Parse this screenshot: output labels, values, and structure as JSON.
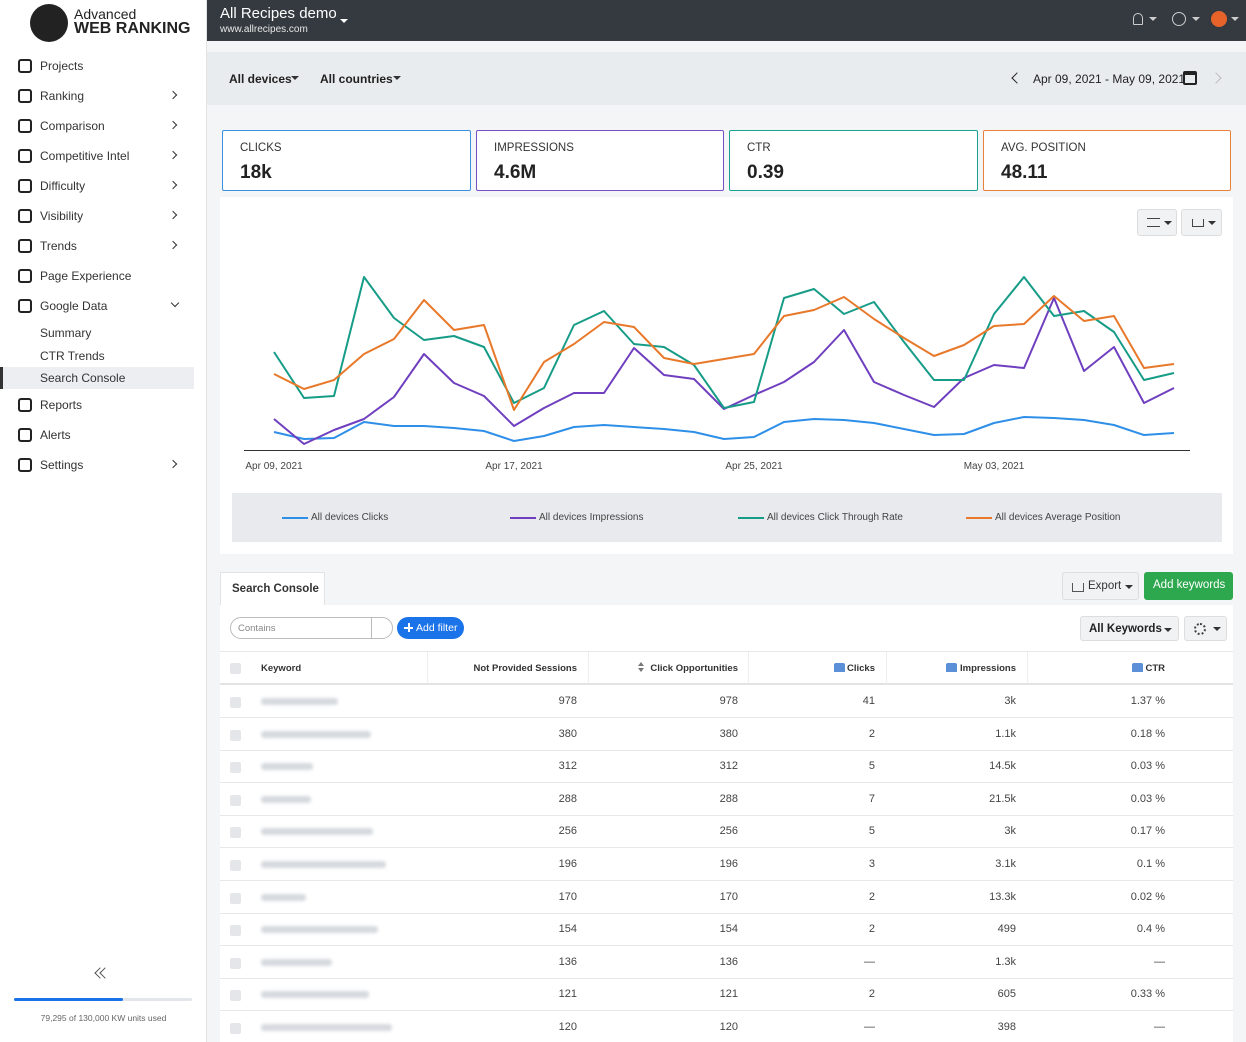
{
  "sidebar": {
    "logo": [
      "Advanced",
      "WEB RANKING"
    ],
    "nav": [
      "Projects",
      "Ranking",
      "Comparison",
      "Competitive Intel",
      "Difficulty",
      "Visibility",
      "Trends",
      "Page Experience",
      "Google Data"
    ],
    "google_data_items": [
      "Summary",
      "CTR Trends",
      "Search Console"
    ],
    "nav_bottom": [
      "Reports",
      "Alerts",
      "Settings"
    ],
    "usage": {
      "label": "79,295 of 130,000 KW units used",
      "used": 79295,
      "total": 130000
    }
  },
  "topbar": {
    "title": "All Recipes demo",
    "subtitle": "www.allrecipes.com"
  },
  "filters": {
    "device": "All devices",
    "country": "All countries",
    "date_range": "Apr 09, 2021 - May 09, 2021"
  },
  "cards": [
    {
      "label": "CLICKS",
      "value": "18k",
      "color": "#3d8fe0"
    },
    {
      "label": "IMPRESSIONS",
      "value": "4.6M",
      "color": "#7a4fc4"
    },
    {
      "label": "CTR",
      "value": "0.39",
      "color": "#1aa392"
    },
    {
      "label": "AVG. POSITION",
      "value": "48.11",
      "color": "#e8823a"
    }
  ],
  "chart_data": {
    "type": "line",
    "categories": [
      "Apr 09, 2021",
      null,
      null,
      null,
      null,
      null,
      null,
      null,
      "Apr 17, 2021",
      null,
      null,
      null,
      null,
      null,
      null,
      null,
      "Apr 25, 2021",
      null,
      null,
      null,
      null,
      null,
      null,
      null,
      "May 03, 2021",
      null,
      null,
      null,
      null,
      null,
      null
    ],
    "ylim": [
      0,
      100
    ],
    "grid": false,
    "legend": "bottom",
    "series": [
      {
        "name": "All devices Clicks",
        "color": "#2e8fe8",
        "values": [
          9,
          5.5,
          6,
          14,
          12,
          12,
          11,
          9.5,
          4.5,
          7,
          11.5,
          12.5,
          11.5,
          10.5,
          9,
          5.5,
          6.5,
          14,
          15.5,
          15,
          13.5,
          10.5,
          7.5,
          8,
          13.5,
          16.5,
          16,
          15,
          12.5,
          7.5,
          8.5
        ]
      },
      {
        "name": "All devices Impressions",
        "color": "#6f3fbf",
        "values": [
          15.5,
          3,
          10,
          15.5,
          26.5,
          48,
          33.5,
          27,
          12,
          21,
          28.5,
          28.5,
          51,
          37.5,
          35.5,
          20.5,
          27.5,
          34,
          44,
          60,
          34,
          27.5,
          21.5,
          36,
          42.5,
          41,
          76,
          39.5,
          51.5,
          23.5,
          31
        ]
      },
      {
        "name": "All devices Click Through Rate",
        "color": "#169c87",
        "values": [
          49,
          26,
          27,
          86.5,
          66,
          55,
          57,
          51.5,
          23.5,
          31,
          62.5,
          69.5,
          53,
          51.5,
          42.5,
          21,
          24,
          76,
          80.5,
          68,
          74,
          54,
          35,
          35,
          68,
          86.5,
          67,
          69.5,
          59,
          35,
          38.5
        ]
      },
      {
        "name": "All devices Average Position",
        "color": "#e8782a",
        "values": [
          38,
          30.5,
          35,
          48,
          55.5,
          75,
          60,
          62.5,
          20,
          44,
          53,
          64,
          61.5,
          46,
          43,
          45.5,
          48,
          67,
          70,
          76.5,
          65.5,
          56,
          47,
          52.5,
          62,
          63,
          77,
          64.5,
          67,
          41,
          43
        ]
      }
    ]
  },
  "table": {
    "tab": "Search Console",
    "export": "Export",
    "add_keywords": "Add keywords",
    "filter_placeholder": "Contains",
    "add_filter": "Add filter",
    "keyword_set": "All Keywords",
    "columns": [
      "Keyword",
      "Not Provided Sessions",
      "Click Opportunities",
      "Clicks",
      "Impressions",
      "CTR"
    ],
    "rows": [
      [
        "978",
        "978",
        "41",
        "3k",
        "1.37 %"
      ],
      [
        "380",
        "380",
        "2",
        "1.1k",
        "0.18 %"
      ],
      [
        "312",
        "312",
        "5",
        "14.5k",
        "0.03 %"
      ],
      [
        "288",
        "288",
        "7",
        "21.5k",
        "0.03 %"
      ],
      [
        "256",
        "256",
        "5",
        "3k",
        "0.17 %"
      ],
      [
        "196",
        "196",
        "3",
        "3.1k",
        "0.1 %"
      ],
      [
        "170",
        "170",
        "2",
        "13.3k",
        "0.02 %"
      ],
      [
        "154",
        "154",
        "2",
        "499",
        "0.4 %"
      ],
      [
        "136",
        "136",
        "—",
        "1.3k",
        "—"
      ],
      [
        "121",
        "121",
        "2",
        "605",
        "0.33 %"
      ],
      [
        "120",
        "120",
        "—",
        "398",
        "—"
      ]
    ]
  }
}
